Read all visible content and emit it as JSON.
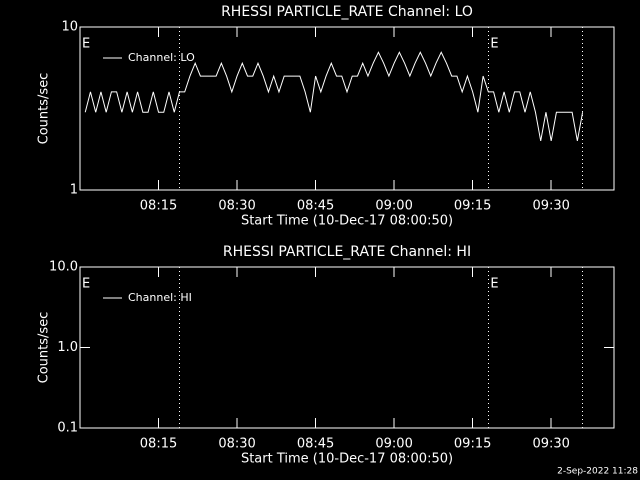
{
  "chart_data": [
    {
      "type": "line",
      "title": "RHESSI PARTICLE_RATE Channel: LO",
      "xlabel": "Start Time (10-Dec-17 08:00:50)",
      "ylabel": "Counts/sec",
      "x": [
        "08:01",
        "08:02",
        "08:03",
        "08:04",
        "08:05",
        "08:06",
        "08:07",
        "08:08",
        "08:09",
        "08:10",
        "08:11",
        "08:12",
        "08:13",
        "08:14",
        "08:15",
        "08:16",
        "08:17",
        "08:18",
        "08:19",
        "08:20",
        "08:21",
        "08:22",
        "08:23",
        "08:24",
        "08:25",
        "08:26",
        "08:27",
        "08:28",
        "08:29",
        "08:30",
        "08:31",
        "08:32",
        "08:33",
        "08:34",
        "08:35",
        "08:36",
        "08:37",
        "08:38",
        "08:39",
        "08:40",
        "08:41",
        "08:42",
        "08:43",
        "08:44",
        "08:45",
        "08:46",
        "08:47",
        "08:48",
        "08:49",
        "08:50",
        "08:51",
        "08:52",
        "08:53",
        "08:54",
        "08:55",
        "08:56",
        "08:57",
        "08:58",
        "08:59",
        "09:00",
        "09:01",
        "09:02",
        "09:03",
        "09:04",
        "09:05",
        "09:06",
        "09:07",
        "09:08",
        "09:09",
        "09:10",
        "09:11",
        "09:12",
        "09:13",
        "09:14",
        "09:15",
        "09:16",
        "09:17",
        "09:18",
        "09:19",
        "09:20",
        "09:21",
        "09:22",
        "09:23",
        "09:24",
        "09:25",
        "09:26",
        "09:27",
        "09:28",
        "09:29",
        "09:30",
        "09:31",
        "09:32",
        "09:33",
        "09:34",
        "09:35",
        "09:36"
      ],
      "series": [
        {
          "name": "Channel: LO",
          "color": "#ffffff",
          "values": [
            3,
            4,
            3,
            4,
            3,
            4,
            4,
            3,
            4,
            3,
            4,
            3,
            3,
            4,
            3,
            3,
            4,
            3,
            4,
            4,
            5,
            6,
            5,
            5,
            5,
            5,
            6,
            5,
            4,
            5,
            6,
            5,
            5,
            6,
            5,
            4,
            5,
            4,
            5,
            5,
            5,
            5,
            4,
            3,
            5,
            4,
            5,
            6,
            5,
            5,
            4,
            5,
            5,
            6,
            5,
            6,
            7,
            6,
            5,
            6,
            7,
            6,
            5,
            6,
            7,
            6,
            5,
            6,
            7,
            6,
            5,
            5,
            4,
            5,
            4,
            3,
            5,
            4,
            4,
            3,
            4,
            3,
            4,
            4,
            3,
            4,
            3,
            2,
            3,
            2,
            3,
            3,
            3,
            3,
            2,
            3
          ]
        }
      ],
      "xlim": [
        "08:00",
        "09:42"
      ],
      "xticks": [
        "08:15",
        "08:30",
        "08:45",
        "09:00",
        "09:15",
        "09:30"
      ],
      "ylim": [
        1,
        10
      ],
      "yticks": [
        1,
        10
      ],
      "log_y": true,
      "legend": "upper left",
      "vlines": [
        "08:19",
        "09:18",
        "09:36"
      ],
      "flags": [
        {
          "x": "08:00",
          "label": "E"
        },
        {
          "x": "09:18",
          "label": "E"
        }
      ]
    },
    {
      "type": "line",
      "title": "RHESSI PARTICLE_RATE Channel: HI",
      "xlabel": "Start Time (10-Dec-17 08:00:50)",
      "ylabel": "Counts/sec",
      "x": [],
      "series": [
        {
          "name": "Channel: HI",
          "color": "#ffffff",
          "values": []
        }
      ],
      "xlim": [
        "08:00",
        "09:42"
      ],
      "xticks": [
        "08:15",
        "08:30",
        "08:45",
        "09:00",
        "09:15",
        "09:30"
      ],
      "ylim": [
        0.1,
        10
      ],
      "yticks": [
        0.1,
        {
          "value": 1,
          "label": "1.0"
        },
        {
          "value": 10,
          "label": "10.0"
        }
      ],
      "log_y": true,
      "legend": "upper left",
      "vlines": [
        "08:19",
        "09:18",
        "09:36"
      ],
      "flags": [
        {
          "x": "08:00",
          "label": "E"
        },
        {
          "x": "09:18",
          "label": "E"
        }
      ]
    }
  ],
  "footer": "2-Sep-2022 11:28"
}
